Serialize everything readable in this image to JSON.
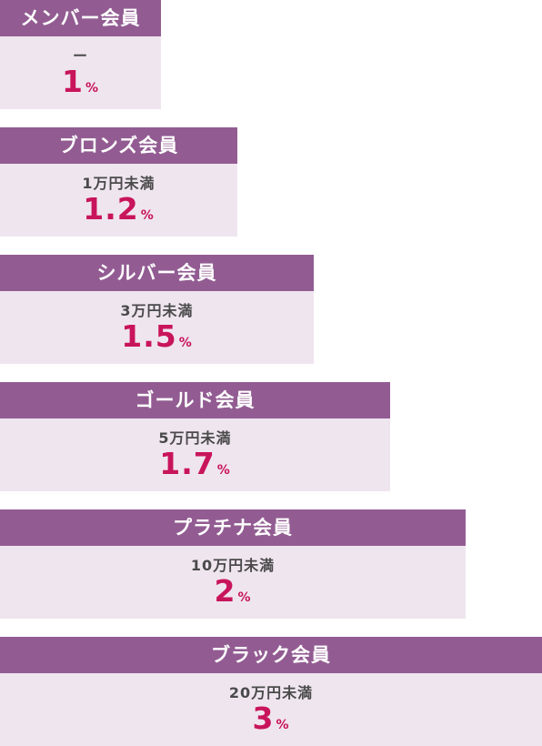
{
  "tiers": [
    {
      "name": "メンバー会員",
      "threshold": "ー",
      "rate": "1",
      "unit": "%"
    },
    {
      "name": "ブロンズ会員",
      "threshold": "1万円未満",
      "rate": "1.2",
      "unit": "%"
    },
    {
      "name": "シルバー会員",
      "threshold": "3万円未満",
      "rate": "1.5",
      "unit": "%"
    },
    {
      "name": "ゴールド会員",
      "threshold": "5万円未満",
      "rate": "1.7",
      "unit": "%"
    },
    {
      "name": "プラチナ会員",
      "threshold": "10万円未満",
      "rate": "2",
      "unit": "%"
    },
    {
      "name": "ブラック会員",
      "threshold": "20万円未満",
      "rate": "3",
      "unit": "%"
    }
  ],
  "colors": {
    "header": "#925c92",
    "body": "#efe5ef",
    "rate": "#c8145a"
  }
}
